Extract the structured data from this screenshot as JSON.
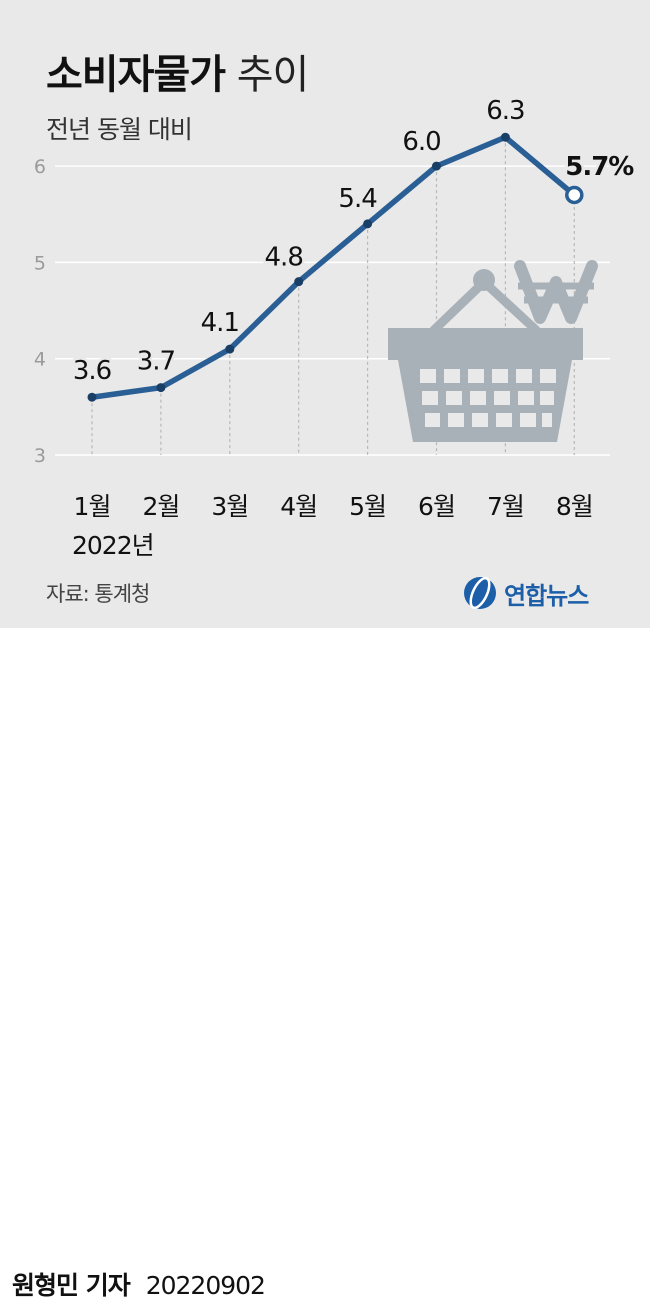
{
  "title": {
    "main": "소비자물가",
    "light": "추이"
  },
  "subtitle": "전년 동월 대비",
  "source": "자료: 통계청",
  "logo_text": "연합뉴스",
  "byline": {
    "author": "원형민 기자",
    "date": "20220902"
  },
  "colors": {
    "line": "#2a5f96",
    "background": "#e9e9e9",
    "icon": "#a9b1b8"
  },
  "icons": [
    "shopping-basket-icon",
    "won-sign-icon"
  ],
  "chart_data": {
    "type": "line",
    "categories": [
      "1월",
      "2월",
      "3월",
      "4월",
      "5월",
      "6월",
      "7월",
      "8월"
    ],
    "year_label": "2022년",
    "values": [
      3.6,
      3.7,
      4.1,
      4.8,
      5.4,
      6.0,
      6.3,
      5.7
    ],
    "data_labels": [
      "3.6",
      "3.7",
      "4.1",
      "4.8",
      "5.4",
      "6.0",
      "6.3",
      "5.7%"
    ],
    "yticks": [
      3,
      4,
      5,
      6
    ],
    "ylim": [
      3,
      6.5
    ],
    "grid": true,
    "unit": "%"
  }
}
